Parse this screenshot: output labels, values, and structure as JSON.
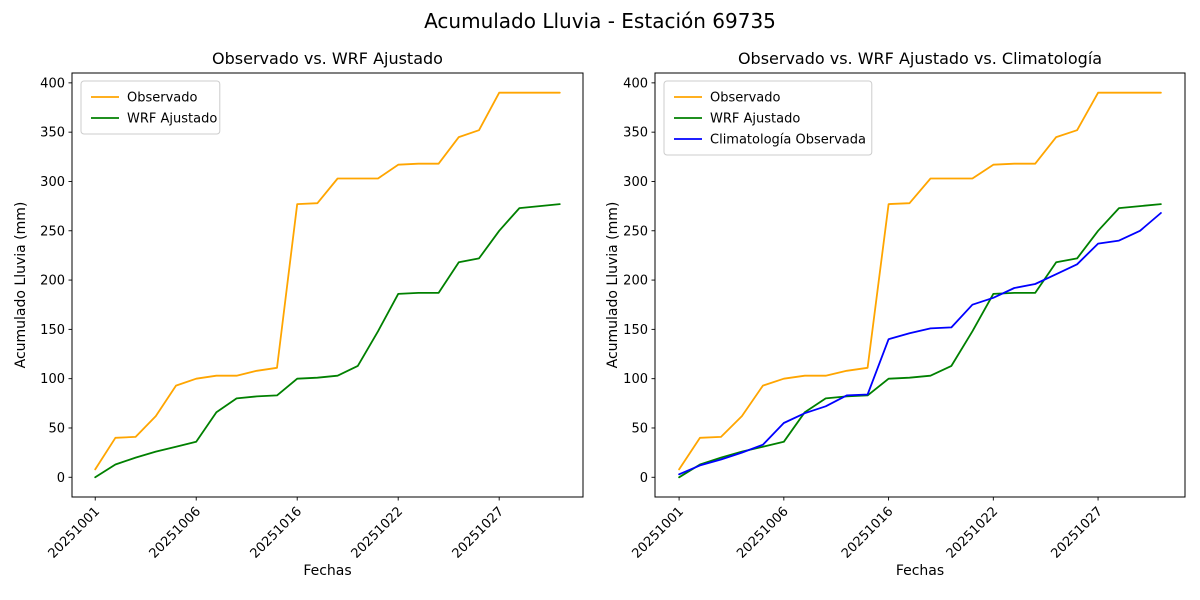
{
  "figure": {
    "suptitle": "Acumulado Lluvia - Estación 69735"
  },
  "chart_data": [
    {
      "type": "line",
      "title": "Observado vs. WRF Ajustado",
      "xlabel": "Fechas",
      "ylabel": "Acumulado Lluvia (mm)",
      "n_points": 24,
      "ylim": [
        -20,
        410
      ],
      "y_ticks": [
        0,
        50,
        100,
        150,
        200,
        250,
        300,
        350,
        400
      ],
      "x_tick_positions": [
        0,
        5,
        10,
        15,
        20
      ],
      "x_tick_labels": [
        "20251001",
        "20251006",
        "20251016",
        "20251022",
        "20251027"
      ],
      "legend_position": "upper left",
      "grid": false,
      "series": [
        {
          "name": "Observado",
          "color": "#ffa500",
          "values": [
            8,
            40,
            41,
            62,
            93,
            100,
            103,
            103,
            108,
            111,
            277,
            278,
            303,
            303,
            303,
            317,
            318,
            318,
            345,
            352,
            390,
            390,
            390,
            390
          ]
        },
        {
          "name": "WRF Ajustado",
          "color": "#008000",
          "values": [
            0,
            13,
            20,
            26,
            31,
            36,
            66,
            80,
            82,
            83,
            100,
            101,
            103,
            113,
            148,
            186,
            187,
            187,
            218,
            222,
            250,
            273,
            275,
            277
          ]
        }
      ]
    },
    {
      "type": "line",
      "title": "Observado vs. WRF Ajustado vs. Climatología",
      "xlabel": "Fechas",
      "ylabel": "Acumulado Lluvia (mm)",
      "n_points": 24,
      "ylim": [
        -20,
        410
      ],
      "y_ticks": [
        0,
        50,
        100,
        150,
        200,
        250,
        300,
        350,
        400
      ],
      "x_tick_positions": [
        0,
        5,
        10,
        15,
        20
      ],
      "x_tick_labels": [
        "20251001",
        "20251006",
        "20251016",
        "20251022",
        "20251027"
      ],
      "legend_position": "upper left",
      "grid": false,
      "series": [
        {
          "name": "Observado",
          "color": "#ffa500",
          "values": [
            8,
            40,
            41,
            62,
            93,
            100,
            103,
            103,
            108,
            111,
            277,
            278,
            303,
            303,
            303,
            317,
            318,
            318,
            345,
            352,
            390,
            390,
            390,
            390
          ]
        },
        {
          "name": "WRF Ajustado",
          "color": "#008000",
          "values": [
            0,
            13,
            20,
            26,
            31,
            36,
            66,
            80,
            82,
            83,
            100,
            101,
            103,
            113,
            148,
            186,
            187,
            187,
            218,
            222,
            250,
            273,
            275,
            277
          ]
        },
        {
          "name": "Climatología Observada",
          "color": "#0000ff",
          "values": [
            3,
            12,
            18,
            25,
            33,
            55,
            65,
            72,
            83,
            84,
            140,
            146,
            151,
            152,
            175,
            182,
            192,
            196,
            206,
            216,
            237,
            240,
            250,
            268
          ]
        }
      ]
    }
  ]
}
